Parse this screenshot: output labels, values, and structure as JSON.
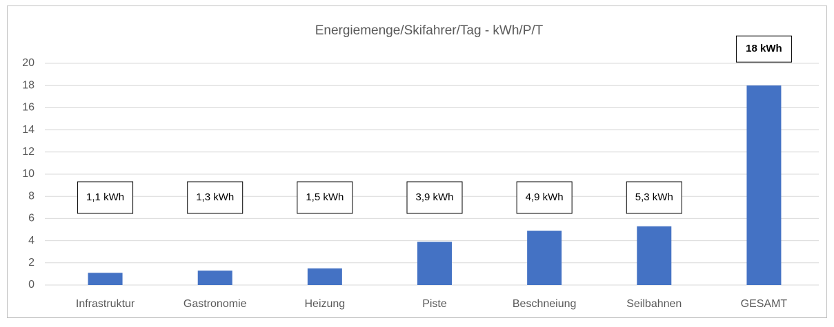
{
  "chart_data": {
    "type": "bar",
    "title": "Energiemenge/Skifahrer/Tag  -  kWh/P/T",
    "categories": [
      "Infrastruktur",
      "Gastronomie",
      "Heizung",
      "Piste",
      "Beschneiung",
      "Seilbahnen",
      "GESAMT"
    ],
    "values": [
      1.1,
      1.3,
      1.5,
      3.9,
      4.9,
      5.3,
      18
    ],
    "value_labels": [
      "1,1 kWh",
      "1,3 kWh",
      "1,5 kWh",
      "3,9 kWh",
      "4,9 kWh",
      "5,3 kWh",
      "18 kWh"
    ],
    "color": "#4472c4",
    "ylim": [
      0,
      20
    ],
    "yticks": [
      0,
      2,
      4,
      6,
      8,
      10,
      12,
      14,
      16,
      18,
      20
    ],
    "grid": true
  }
}
